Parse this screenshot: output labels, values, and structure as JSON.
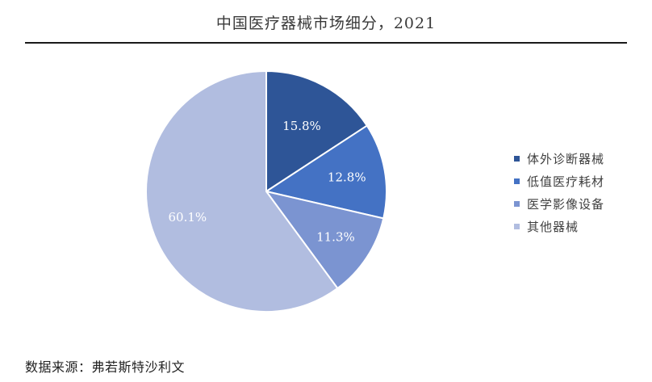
{
  "title": "中国医疗器械市场细分，2021",
  "source": "数据来源：弗若斯特沙利文",
  "chart_data": {
    "type": "pie",
    "title": "中国医疗器械市场细分，2021",
    "start": "12 o'clock, clockwise",
    "legend_position": "right",
    "slices": [
      {
        "name": "体外诊断器械",
        "value": 15.8,
        "label": "15.8%",
        "color": "#2e5597"
      },
      {
        "name": "低值医疗耗材",
        "value": 12.8,
        "label": "12.8%",
        "color": "#4472c4"
      },
      {
        "name": "医学影像设备",
        "value": 11.3,
        "label": "11.3%",
        "color": "#7b94d1"
      },
      {
        "name": "其他器械",
        "value": 60.1,
        "label": "60.1%",
        "color": "#b1bde0"
      }
    ]
  }
}
